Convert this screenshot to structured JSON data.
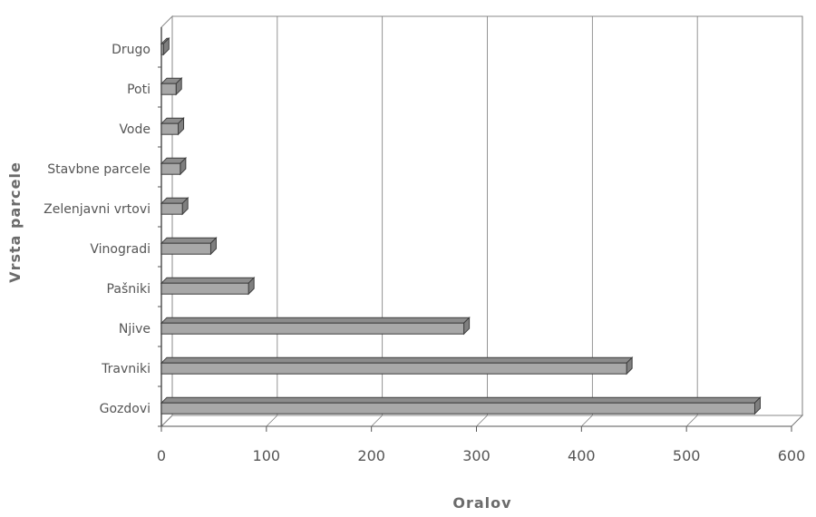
{
  "chart_data": {
    "type": "bar",
    "orientation": "horizontal",
    "categories": [
      "Drugo",
      "Poti",
      "Vode",
      "Stavbne parcele",
      "Zelenjavni vrtovi",
      "Vinogradi",
      "Pašniki",
      "Njive",
      "Travniki",
      "Gozdovi"
    ],
    "values": [
      2,
      14,
      16,
      18,
      20,
      47,
      83,
      288,
      443,
      565
    ],
    "xlabel": "Oralov",
    "ylabel": "Vrsta parcele",
    "xlim": [
      0,
      600
    ],
    "xticks": [
      "0",
      "100",
      "200",
      "300",
      "400",
      "500",
      "600"
    ],
    "grid": "vertical",
    "colors": {
      "bar_front": "#a8a8a8",
      "bar_top": "#8c8c8c",
      "bar_side": "#7f7f7f",
      "bar_stroke": "#3c3c3c"
    }
  }
}
